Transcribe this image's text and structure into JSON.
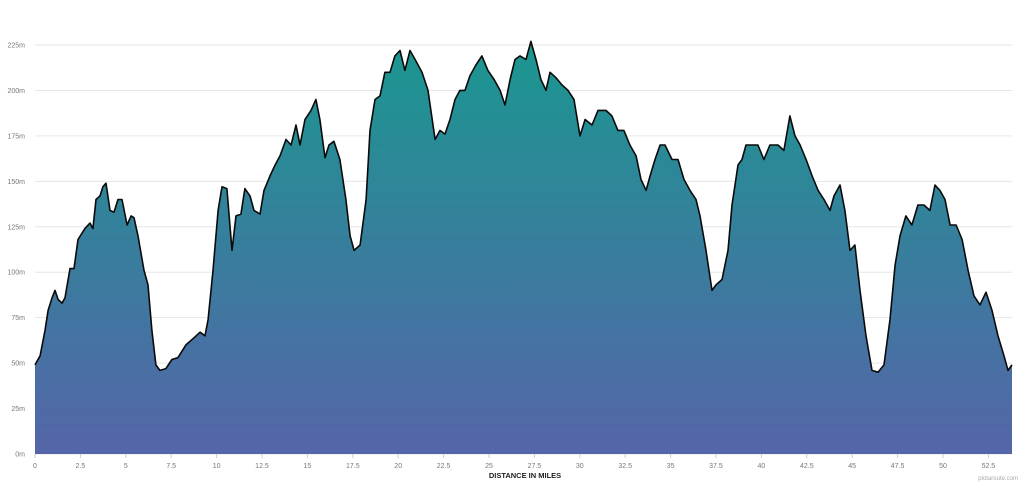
{
  "chart_data": {
    "type": "area",
    "title": "",
    "xlabel": "DISTANCE IN MILES",
    "ylabel": "",
    "xlim": [
      0,
      53.8
    ],
    "ylim": [
      0,
      225
    ],
    "x_ticks": [
      "0",
      "2.5",
      "5",
      "7.5",
      "10",
      "12.5",
      "15",
      "17.5",
      "20",
      "22.5",
      "25",
      "27.5",
      "30",
      "32.5",
      "35",
      "37.5",
      "40",
      "42.5",
      "45",
      "47.5",
      "50",
      "52.5"
    ],
    "y_ticks": [
      "0m",
      "25m",
      "50m",
      "75m",
      "100m",
      "125m",
      "150m",
      "175m",
      "200m",
      "225m"
    ],
    "grid": true,
    "colors": {
      "fill_top": "#1a9790",
      "fill_bottom": "#5565a9",
      "line": "#0a0a0a",
      "grid": "#e6e6e6"
    },
    "series": [
      {
        "x": [
          0,
          0.28,
          0.55,
          0.72,
          0.94,
          1.1,
          1.27,
          1.49,
          1.65,
          1.93,
          2.15,
          2.37,
          2.75,
          3.03,
          3.19,
          3.36,
          3.58,
          3.74,
          3.91,
          4.13,
          4.35,
          4.57,
          4.79,
          5.07,
          5.29,
          5.45,
          5.67,
          6.0,
          6.22,
          6.44,
          6.66,
          6.88,
          7.21,
          7.54,
          7.87,
          8.31,
          8.76,
          9.09,
          9.36,
          9.53,
          9.8,
          10.08,
          10.3,
          10.57,
          10.85,
          11.07,
          11.34,
          11.56,
          11.84,
          12.06,
          12.39,
          12.61,
          12.94,
          13.22,
          13.49,
          13.82,
          14.1,
          14.37,
          14.59,
          14.87,
          15.2,
          15.47,
          15.69,
          15.97,
          16.19,
          16.46,
          16.79,
          17.12,
          17.35,
          17.57,
          17.9,
          18.23,
          18.45,
          18.72,
          19.0,
          19.27,
          19.55,
          19.82,
          20.1,
          20.37,
          20.65,
          20.93,
          21.31,
          21.64,
          22.03,
          22.3,
          22.58,
          22.85,
          23.13,
          23.4,
          23.68,
          23.95,
          24.28,
          24.61,
          24.94,
          25.28,
          25.61,
          25.88,
          26.16,
          26.43,
          26.71,
          27.04,
          27.31,
          27.59,
          27.86,
          28.14,
          28.36,
          28.69,
          29.02,
          29.35,
          29.68,
          30.01,
          30.29,
          30.67,
          31.0,
          31.44,
          31.77,
          32.1,
          32.43,
          32.76,
          33.1,
          33.37,
          33.65,
          33.87,
          34.14,
          34.42,
          34.69,
          35.08,
          35.41,
          35.74,
          36.07,
          36.4,
          36.62,
          36.95,
          37.28,
          37.5,
          37.83,
          38.16,
          38.38,
          38.71,
          38.93,
          39.15,
          39.48,
          39.81,
          40.14,
          40.47,
          40.91,
          41.24,
          41.57,
          41.85,
          42.13,
          42.46,
          42.79,
          43.12,
          43.45,
          43.78,
          44.0,
          44.33,
          44.6,
          44.88,
          45.15,
          45.43,
          45.76,
          46.09,
          46.42,
          46.75,
          47.08,
          47.36,
          47.63,
          47.96,
          48.29,
          48.62,
          48.95,
          49.28,
          49.56,
          49.83,
          50.11,
          50.39,
          50.72,
          51.05,
          51.38,
          51.71,
          52.04,
          52.37,
          52.7,
          53.03,
          53.36,
          53.58,
          53.8
        ],
        "y": [
          49,
          54,
          68,
          79,
          86,
          90,
          85,
          83,
          86,
          102,
          102,
          118,
          124,
          127,
          124,
          140,
          142,
          147,
          149,
          134,
          133,
          140,
          140,
          126,
          131,
          130,
          120,
          101,
          93,
          68,
          49,
          46,
          47,
          52,
          53,
          60,
          64,
          67,
          65,
          74,
          101,
          134,
          147,
          146,
          112,
          131,
          132,
          146,
          142,
          134,
          132,
          145,
          153,
          159,
          164,
          173,
          170,
          181,
          170,
          184,
          189,
          195,
          184,
          163,
          170,
          172,
          162,
          140,
          120,
          112,
          115,
          140,
          178,
          195,
          197,
          210,
          210,
          219,
          222,
          211,
          222,
          217,
          210,
          200,
          173,
          178,
          176,
          184,
          195,
          200,
          200,
          208,
          214,
          219,
          211,
          206,
          200,
          192,
          206,
          217,
          219,
          217,
          227,
          217,
          206,
          200,
          210,
          207,
          203,
          200,
          195,
          175,
          184,
          181,
          189,
          189,
          186,
          178,
          178,
          170,
          164,
          151,
          145,
          153,
          162,
          170,
          170,
          162,
          162,
          151,
          145,
          140,
          131,
          112,
          90,
          93,
          96,
          112,
          137,
          159,
          162,
          170,
          170,
          170,
          162,
          170,
          170,
          167,
          186,
          175,
          170,
          162,
          153,
          145,
          140,
          134,
          142,
          148,
          134,
          112,
          115,
          90,
          65,
          46,
          45,
          49,
          74,
          104,
          120,
          131,
          126,
          137,
          137,
          134,
          148,
          145,
          140,
          126,
          126,
          118,
          101,
          87,
          82,
          89,
          79,
          65,
          54,
          46,
          49
        ]
      }
    ]
  },
  "watermark": "plotaroute.com"
}
